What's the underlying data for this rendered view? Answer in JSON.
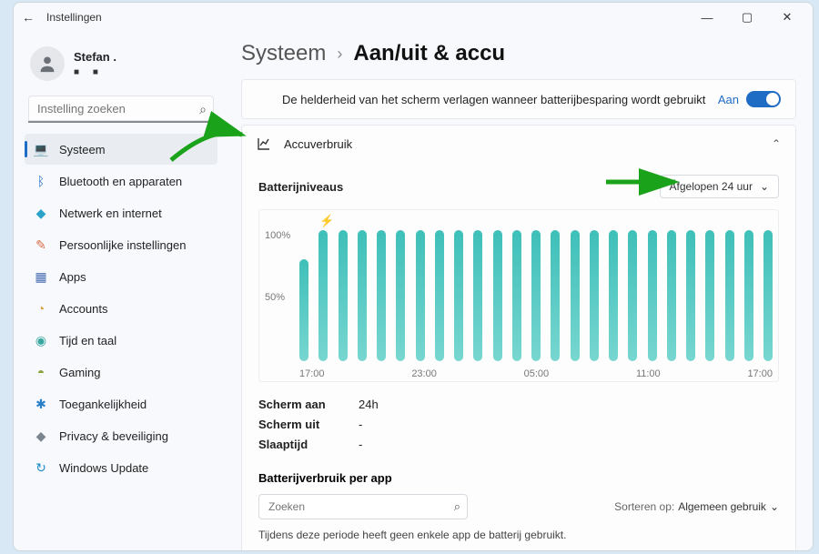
{
  "window": {
    "title": "Instellingen"
  },
  "user": {
    "name": "Stefan ."
  },
  "search": {
    "placeholder": "Instelling zoeken"
  },
  "nav": [
    {
      "key": "system",
      "label": "Systeem",
      "icon": "💻",
      "color": "#1f6cc5",
      "active": true
    },
    {
      "key": "bluetooth",
      "label": "Bluetooth en apparaten",
      "icon": "ᛒ",
      "color": "#1f6cc5"
    },
    {
      "key": "network",
      "label": "Netwerk en internet",
      "icon": "◆",
      "color": "#2aa3c9"
    },
    {
      "key": "personal",
      "label": "Persoonlijke instellingen",
      "icon": "✎",
      "color": "#d96b4a"
    },
    {
      "key": "apps",
      "label": "Apps",
      "icon": "▦",
      "color": "#4a6fb3"
    },
    {
      "key": "accounts",
      "label": "Accounts",
      "icon": "◔",
      "color": "#d9a23d"
    },
    {
      "key": "time",
      "label": "Tijd en taal",
      "icon": "◉",
      "color": "#3aa6a0"
    },
    {
      "key": "gaming",
      "label": "Gaming",
      "icon": "◓",
      "color": "#8aa33d"
    },
    {
      "key": "access",
      "label": "Toegankelijkheid",
      "icon": "✱",
      "color": "#2a7fc9"
    },
    {
      "key": "privacy",
      "label": "Privacy & beveiliging",
      "icon": "◆",
      "color": "#7a8590"
    },
    {
      "key": "update",
      "label": "Windows Update",
      "icon": "↻",
      "color": "#1f8ac9"
    }
  ],
  "breadcrumb": {
    "parent": "Systeem",
    "current": "Aan/uit & accu"
  },
  "brightness_row": {
    "text": "De helderheid van het scherm verlagen wanneer batterijbesparing wordt gebruikt",
    "state_label": "Aan"
  },
  "usage_section": {
    "title": "Accuverbruik"
  },
  "levels": {
    "title": "Batterijniveaus",
    "period": "Afgelopen 24 uur",
    "y_ticks": [
      "100%",
      "50%"
    ],
    "x_ticks": [
      "17:00",
      "23:00",
      "05:00",
      "11:00",
      "17:00"
    ],
    "bar_color_top": "#3fbfb9",
    "bar_color_bottom": "#77d6d0",
    "values": [
      78,
      100,
      100,
      100,
      100,
      100,
      100,
      100,
      100,
      100,
      100,
      100,
      100,
      100,
      100,
      100,
      100,
      100,
      100,
      100,
      100,
      100,
      100,
      100,
      100
    ],
    "charging_index": 1
  },
  "stats": {
    "screen_on_label": "Scherm aan",
    "screen_on_value": "24h",
    "screen_off_label": "Scherm uit",
    "screen_off_value": "-",
    "sleep_label": "Slaaptijd",
    "sleep_value": "-"
  },
  "perapp": {
    "title": "Batterijverbruik per app",
    "search_placeholder": "Zoeken",
    "sort_label": "Sorteren op:",
    "sort_value": "Algemeen gebruik",
    "empty": "Tijdens deze periode heeft geen enkele app de batterij gebruikt."
  },
  "arrows": {
    "color": "#1aa31a"
  }
}
